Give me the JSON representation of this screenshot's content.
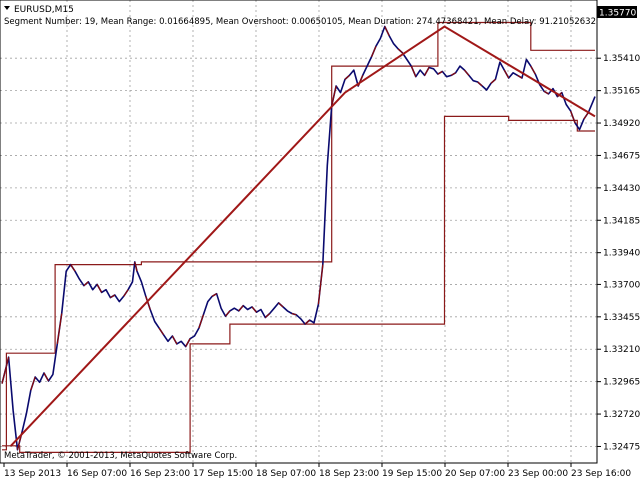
{
  "window": {
    "title": "EURUSD,M15",
    "info": "Segment Number: 19, Mean Range: 0.01664895, Mean Overshoot: 0.00650105, Mean Duration: 274.47368421, Mean Delay: 91.21052632",
    "copyright": "MetaTrader, © 2001-2013, MetaQuotes Software Corp."
  },
  "chart_data": {
    "type": "line",
    "symbol": "EURUSD",
    "timeframe": "M15",
    "ylim": [
      1.3235,
      1.3585
    ],
    "current_price": "1.35770",
    "y_ticks": [
      "1.35770",
      "1.35410",
      "1.35165",
      "1.34920",
      "1.34675",
      "1.34430",
      "1.34185",
      "1.33940",
      "1.33700",
      "1.33455",
      "1.33210",
      "1.32965",
      "1.32720",
      "1.32475"
    ],
    "x_ticks": [
      "13 Sep 2013",
      "16 Sep 07:00",
      "16 Sep 23:00",
      "17 Sep 15:00",
      "18 Sep 07:00",
      "18 Sep 23:00",
      "19 Sep 15:00",
      "20 Sep 07:00",
      "23 Sep 00:00",
      "23 Sep 16:00"
    ],
    "grid": true,
    "colors": {
      "price": "#0a0a6e",
      "price_alt": "#8b0a0a",
      "zigzag": "#a01818",
      "channel": "#8b1a1a",
      "current_box": "#000000",
      "grid": "#a0a0a0"
    },
    "price_path": [
      [
        0,
        1.3295
      ],
      [
        3,
        1.3315
      ],
      [
        5,
        1.3275
      ],
      [
        7,
        1.3245
      ],
      [
        9,
        1.3258
      ],
      [
        11,
        1.3272
      ],
      [
        13,
        1.329
      ],
      [
        15,
        1.33
      ],
      [
        17,
        1.3296
      ],
      [
        19,
        1.3303
      ],
      [
        21,
        1.3297
      ],
      [
        23,
        1.3302
      ],
      [
        25,
        1.3325
      ],
      [
        27,
        1.3348
      ],
      [
        29,
        1.338
      ],
      [
        31,
        1.3385
      ],
      [
        33,
        1.338
      ],
      [
        35,
        1.3374
      ],
      [
        37,
        1.3369
      ],
      [
        39,
        1.3372
      ],
      [
        41,
        1.3366
      ],
      [
        43,
        1.337
      ],
      [
        45,
        1.3364
      ],
      [
        47,
        1.3366
      ],
      [
        49,
        1.336
      ],
      [
        51,
        1.3362
      ],
      [
        53,
        1.3357
      ],
      [
        55,
        1.3361
      ],
      [
        57,
        1.3366
      ],
      [
        59,
        1.3372
      ],
      [
        60,
        1.3387
      ],
      [
        61,
        1.338
      ],
      [
        63,
        1.3372
      ],
      [
        65,
        1.3361
      ],
      [
        67,
        1.3351
      ],
      [
        69,
        1.3342
      ],
      [
        71,
        1.3337
      ],
      [
        73,
        1.3332
      ],
      [
        75,
        1.3327
      ],
      [
        77,
        1.3331
      ],
      [
        79,
        1.3325
      ],
      [
        81,
        1.3327
      ],
      [
        83,
        1.3323
      ],
      [
        85,
        1.3329
      ],
      [
        87,
        1.3331
      ],
      [
        89,
        1.3337
      ],
      [
        91,
        1.3347
      ],
      [
        93,
        1.3357
      ],
      [
        95,
        1.3361
      ],
      [
        97,
        1.3363
      ],
      [
        99,
        1.3352
      ],
      [
        101,
        1.3346
      ],
      [
        103,
        1.335
      ],
      [
        105,
        1.3352
      ],
      [
        107,
        1.335
      ],
      [
        109,
        1.3354
      ],
      [
        111,
        1.3351
      ],
      [
        113,
        1.3353
      ],
      [
        115,
        1.3349
      ],
      [
        117,
        1.3351
      ],
      [
        119,
        1.3345
      ],
      [
        121,
        1.3348
      ],
      [
        123,
        1.3352
      ],
      [
        125,
        1.3356
      ],
      [
        127,
        1.3353
      ],
      [
        129,
        1.335
      ],
      [
        131,
        1.3348
      ],
      [
        133,
        1.3347
      ],
      [
        135,
        1.3344
      ],
      [
        137,
        1.334
      ],
      [
        139,
        1.3343
      ],
      [
        141,
        1.3341
      ],
      [
        143,
        1.3355
      ],
      [
        145,
        1.3385
      ],
      [
        147,
        1.346
      ],
      [
        149,
        1.3505
      ],
      [
        151,
        1.352
      ],
      [
        153,
        1.3515
      ],
      [
        155,
        1.3525
      ],
      [
        157,
        1.3528
      ],
      [
        159,
        1.3532
      ],
      [
        161,
        1.352
      ],
      [
        163,
        1.3528
      ],
      [
        165,
        1.3535
      ],
      [
        167,
        1.3542
      ],
      [
        169,
        1.355
      ],
      [
        171,
        1.3556
      ],
      [
        173,
        1.3565
      ],
      [
        175,
        1.3558
      ],
      [
        177,
        1.3552
      ],
      [
        179,
        1.3548
      ],
      [
        181,
        1.3545
      ],
      [
        183,
        1.354
      ],
      [
        185,
        1.3535
      ],
      [
        187,
        1.3527
      ],
      [
        189,
        1.3532
      ],
      [
        191,
        1.3528
      ],
      [
        193,
        1.3534
      ],
      [
        195,
        1.3533
      ],
      [
        197,
        1.3529
      ],
      [
        199,
        1.3531
      ],
      [
        201,
        1.3527
      ],
      [
        203,
        1.3528
      ],
      [
        205,
        1.353
      ],
      [
        207,
        1.3535
      ],
      [
        209,
        1.3532
      ],
      [
        211,
        1.3528
      ],
      [
        213,
        1.3524
      ],
      [
        215,
        1.3523
      ],
      [
        217,
        1.352
      ],
      [
        219,
        1.3517
      ],
      [
        221,
        1.3522
      ],
      [
        223,
        1.3525
      ],
      [
        225,
        1.3538
      ],
      [
        227,
        1.3532
      ],
      [
        229,
        1.3526
      ],
      [
        231,
        1.353
      ],
      [
        233,
        1.3528
      ],
      [
        235,
        1.3526
      ],
      [
        237,
        1.354
      ],
      [
        239,
        1.3535
      ],
      [
        241,
        1.3529
      ],
      [
        243,
        1.3521
      ],
      [
        245,
        1.3516
      ],
      [
        247,
        1.3514
      ],
      [
        249,
        1.3518
      ],
      [
        251,
        1.3512
      ],
      [
        253,
        1.3515
      ],
      [
        255,
        1.3506
      ],
      [
        257,
        1.3501
      ],
      [
        259,
        1.3492
      ],
      [
        261,
        1.3487
      ],
      [
        263,
        1.3495
      ],
      [
        265,
        1.35
      ],
      [
        267,
        1.3508
      ],
      [
        268,
        1.3512
      ]
    ],
    "zigzag": [
      [
        4,
        1.3248
      ],
      [
        155,
        1.3515
      ],
      [
        200,
        1.3565
      ],
      [
        268,
        1.3497
      ]
    ],
    "channels": [
      [
        [
          0,
          1.3245
        ],
        [
          2,
          1.3245
        ],
        [
          2,
          1.3318
        ],
        [
          24,
          1.3318
        ],
        [
          24,
          1.3385
        ],
        [
          63,
          1.3385
        ],
        [
          63,
          1.3387
        ],
        [
          149,
          1.3387
        ],
        [
          149,
          1.3535
        ],
        [
          197,
          1.3535
        ],
        [
          197,
          1.3568
        ],
        [
          239,
          1.3568
        ],
        [
          239,
          1.3547
        ],
        [
          268,
          1.3547
        ]
      ],
      [
        [
          0,
          1.3248
        ],
        [
          8,
          1.3248
        ],
        [
          8,
          1.3243
        ],
        [
          85,
          1.3243
        ],
        [
          85,
          1.3325
        ],
        [
          103,
          1.3325
        ],
        [
          103,
          1.334
        ],
        [
          200,
          1.334
        ],
        [
          200,
          1.3497
        ],
        [
          229,
          1.3497
        ],
        [
          229,
          1.3494
        ],
        [
          260,
          1.3494
        ],
        [
          260,
          1.3486
        ],
        [
          268,
          1.3486
        ]
      ]
    ]
  }
}
